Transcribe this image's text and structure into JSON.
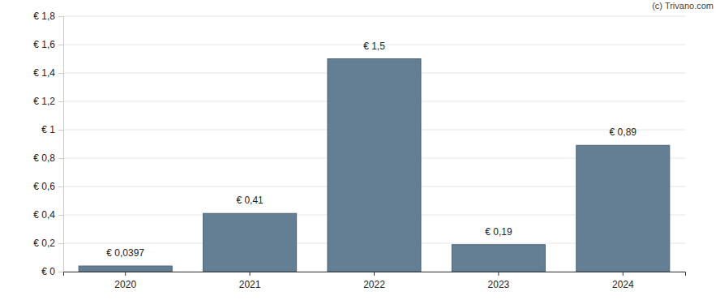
{
  "chart_data": {
    "type": "bar",
    "categories": [
      "2020",
      "2021",
      "2022",
      "2023",
      "2024"
    ],
    "values": [
      0.0397,
      0.41,
      1.5,
      0.19,
      0.89
    ],
    "value_labels": [
      "€ 0,0397",
      "€ 0,41",
      "€ 1,5",
      "€ 0,19",
      "€ 0,89"
    ],
    "data_labels": true,
    "color": "#647f94",
    "ylim": [
      0,
      1.8
    ],
    "yticks": [
      {
        "value": 0,
        "label": "€ 0"
      },
      {
        "value": 0.2,
        "label": "€ 0,2"
      },
      {
        "value": 0.4,
        "label": "€ 0,4"
      },
      {
        "value": 0.6,
        "label": "€ 0,6"
      },
      {
        "value": 0.8,
        "label": "€ 0,8"
      },
      {
        "value": 1,
        "label": "€ 1"
      },
      {
        "value": 1.2,
        "label": "€ 1,2"
      },
      {
        "value": 1.4,
        "label": "€ 1,4"
      },
      {
        "value": 1.6,
        "label": "€ 1,6"
      },
      {
        "value": 1.8,
        "label": "€ 1,8"
      }
    ],
    "grid": true,
    "annotations": [
      "(c) Trivano.com"
    ]
  }
}
